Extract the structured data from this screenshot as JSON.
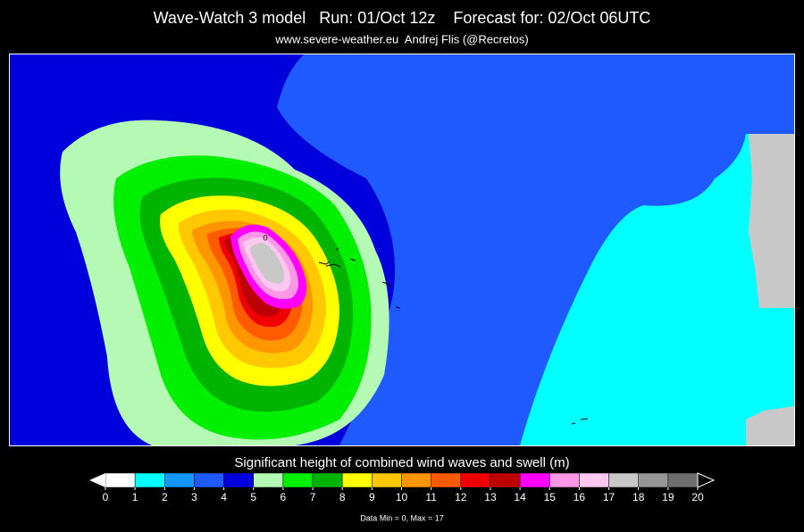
{
  "header": {
    "title": "Wave-Watch 3 model   Run: 01/Oct 12z    Forecast for: 02/Oct 06UTC",
    "subtitle": "www.severe-weather.eu  Andrej Flis (@Recretos)"
  },
  "map": {
    "max_label": "0"
  },
  "legend": {
    "title": "Significant height of combined wind waves and swell (m)",
    "ticks": [
      0,
      1,
      2,
      3,
      4,
      5,
      6,
      7,
      8,
      9,
      10,
      11,
      12,
      13,
      14,
      15,
      16,
      17,
      18,
      19,
      20
    ],
    "colors": [
      "#ffffff",
      "#00ffff",
      "#1496ff",
      "#1e5aff",
      "#0000dc",
      "#b4fab4",
      "#00f000",
      "#00b400",
      "#ffff00",
      "#ffc800",
      "#ff9600",
      "#ff5a00",
      "#f00000",
      "#be0000",
      "#ff00ff",
      "#ff96e6",
      "#ffc8f0",
      "#c8c8c8",
      "#969696",
      "#6e6e6e",
      "#1e1e00"
    ]
  },
  "footer": {
    "stats": "Data Min = 0, Max = 17"
  }
}
